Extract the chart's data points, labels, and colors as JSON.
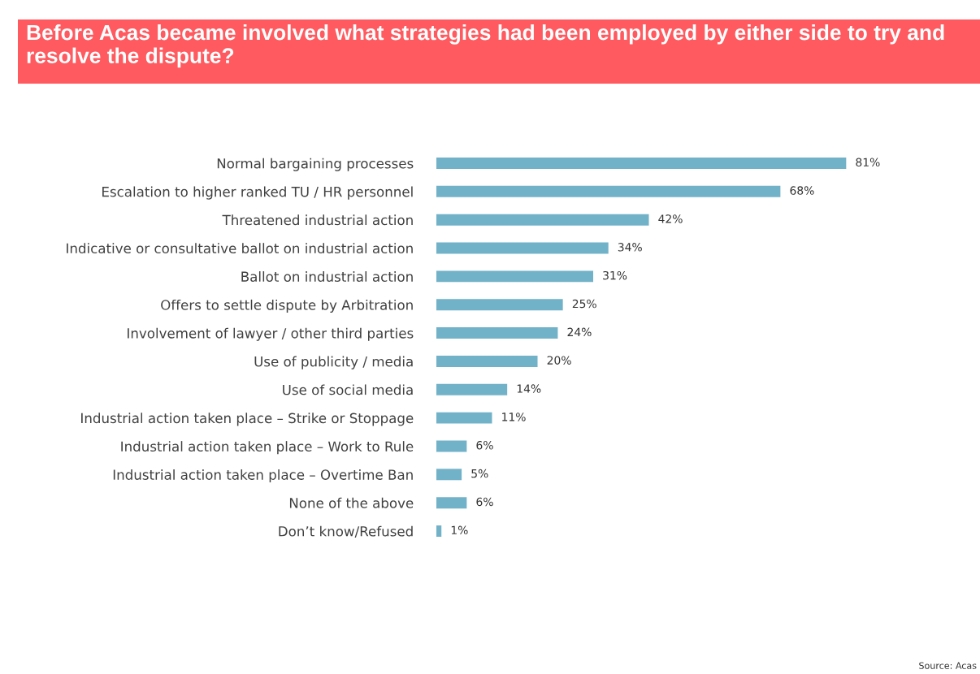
{
  "chart_data": {
    "type": "bar",
    "orientation": "horizontal",
    "title": "Before Acas became involved what strategies had been employed by either side to try and resolve the dispute?",
    "categories": [
      "Normal bargaining processes",
      "Escalation to higher ranked TU / HR personnel",
      "Threatened industrial action",
      "Indicative or consultative ballot on industrial action",
      "Ballot on industrial action",
      "Offers to settle dispute by Arbitration",
      "Involvement of lawyer / other third parties",
      "Use of publicity / media",
      "Use of social media",
      "Industrial action taken place – Strike or Stoppage",
      "Industrial action taken place – Work to Rule",
      "Industrial action taken place – Overtime Ban",
      "None of the above",
      "Don’t know/Refused"
    ],
    "values": [
      81,
      68,
      42,
      34,
      31,
      25,
      24,
      20,
      14,
      11,
      6,
      5,
      6,
      1
    ],
    "value_labels": [
      "81%",
      "68%",
      "42%",
      "34%",
      "31%",
      "25%",
      "24%",
      "20%",
      "14%",
      "11%",
      "6%",
      "5%",
      "6%",
      "1%"
    ],
    "color": "#72b2c8",
    "tick_labels": "y",
    "grid": false,
    "legend": false,
    "annotations": [
      "Source: Acas"
    ]
  }
}
